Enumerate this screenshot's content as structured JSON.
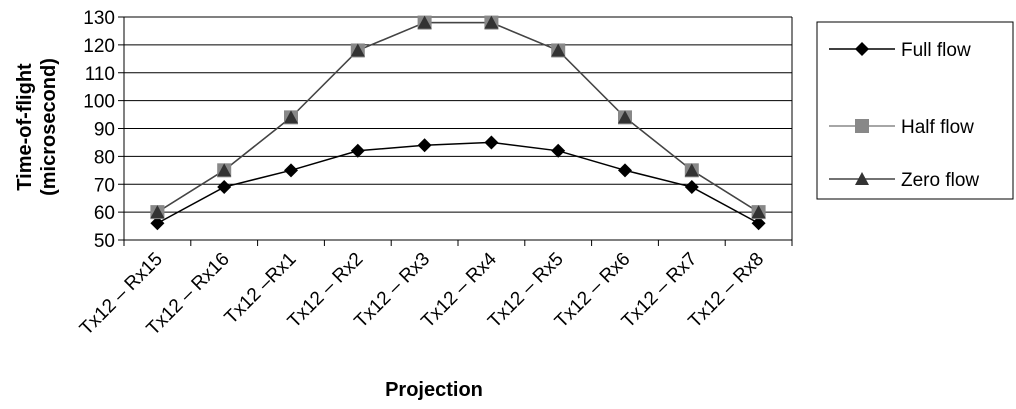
{
  "chart_data": {
    "type": "line",
    "title": "",
    "xlabel": "Projection",
    "ylabel_line1": "Time-of-flight",
    "ylabel_line2": "(microsecond)",
    "categories": [
      "Tx12 – Rx15",
      "Tx12 – Rx16",
      "Tx12 –Rx1",
      "Tx12 – Rx2",
      "Tx12 – Rx3",
      "Tx12 – Rx4",
      "Tx12 – Rx5",
      "Tx12 – Rx6",
      "Tx12 – Rx7",
      "Tx12 – Rx8"
    ],
    "ylim": [
      50,
      130
    ],
    "yticks": [
      50,
      60,
      70,
      80,
      90,
      100,
      110,
      120,
      130
    ],
    "grid": true,
    "legend_position": "right",
    "series": [
      {
        "name": "Full flow",
        "marker": "diamond",
        "color": "#000000",
        "marker_color": "#000000",
        "values": [
          56,
          69,
          75,
          82,
          84,
          85,
          82,
          75,
          69,
          56
        ]
      },
      {
        "name": "Half flow",
        "marker": "square",
        "color": "#888888",
        "marker_color": "#888888",
        "values": [
          60,
          75,
          94,
          118,
          128,
          128,
          118,
          94,
          75,
          60
        ]
      },
      {
        "name": "Zero flow",
        "marker": "triangle",
        "color": "#444444",
        "marker_color": "#333333",
        "values": [
          60,
          75,
          94,
          118,
          128,
          128,
          118,
          94,
          75,
          60
        ]
      }
    ]
  }
}
